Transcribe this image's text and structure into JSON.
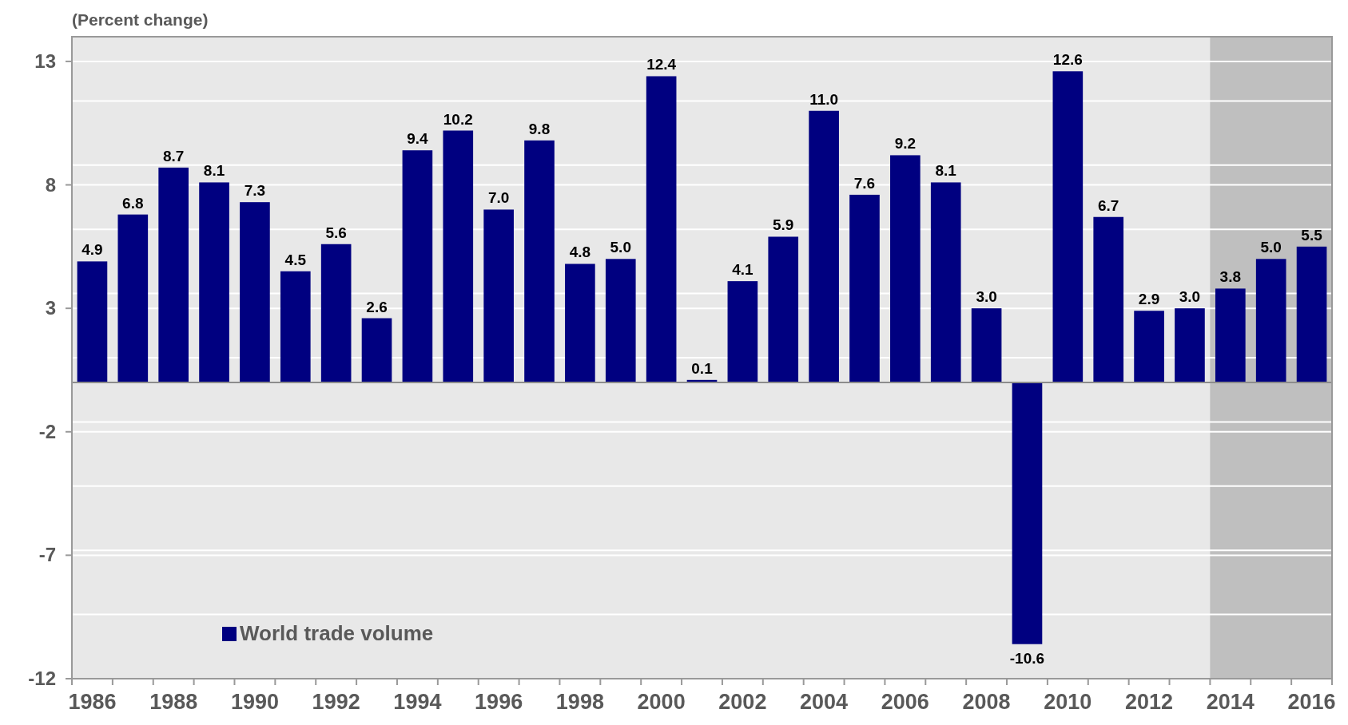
{
  "chart_data": {
    "type": "bar",
    "ylabel": "(Percent change)",
    "categories": [
      "1986",
      null,
      "1988",
      null,
      "1990",
      null,
      "1992",
      null,
      "1994",
      null,
      "1996",
      null,
      "1998",
      null,
      "2000",
      null,
      "2002",
      null,
      "2004",
      null,
      "2006",
      null,
      "2008",
      null,
      "2010",
      null,
      "2012",
      null,
      "2014",
      null,
      "2016"
    ],
    "series": [
      {
        "name": "World trade volume",
        "color": "#000080",
        "values": [
          4.9,
          6.8,
          8.7,
          8.1,
          7.3,
          4.5,
          5.6,
          2.6,
          9.4,
          10.2,
          7.0,
          9.8,
          4.8,
          5.0,
          12.4,
          0.1,
          4.1,
          5.9,
          11.0,
          7.6,
          9.2,
          8.1,
          3.0,
          -10.6,
          12.6,
          6.7,
          2.9,
          3.0,
          3.8,
          5.0,
          5.5
        ],
        "value_labels": [
          "4.9",
          "6.8",
          "8.7",
          "8.1",
          "7.3",
          "4.5",
          "5.6",
          "2.6",
          "9.4",
          "10.2",
          "7.0",
          "9.8",
          "4.8",
          "5.0",
          "12.4",
          "0.1",
          "4.1",
          "5.9",
          "11.0",
          "7.6",
          "9.2",
          "8.1",
          "3.0",
          "-10.6",
          "12.6",
          "6.7",
          "2.9",
          "3.0",
          "3.8",
          "5.0",
          "5.5"
        ]
      }
    ],
    "ylim": [
      -12,
      14
    ],
    "yticks": [
      -12,
      {
        "value": -9.4,
        "label": null
      },
      -7,
      {
        "value": -6.8,
        "label": null
      },
      {
        "value": -4.2,
        "label": null
      },
      -2,
      {
        "value": -1.6,
        "label": null
      },
      {
        "value": 1.0,
        "label": null
      },
      3,
      {
        "value": 3.6,
        "label": null
      },
      {
        "value": 6.2,
        "label": null
      },
      8,
      {
        "value": 8.8,
        "label": null
      },
      {
        "value": 11.4,
        "label": null
      },
      13
    ],
    "grid": "y",
    "legend": "bottom left",
    "bands": [
      {
        "axis": "x",
        "from": "2014",
        "to": "2016",
        "color": "#bfbfbf"
      }
    ]
  }
}
